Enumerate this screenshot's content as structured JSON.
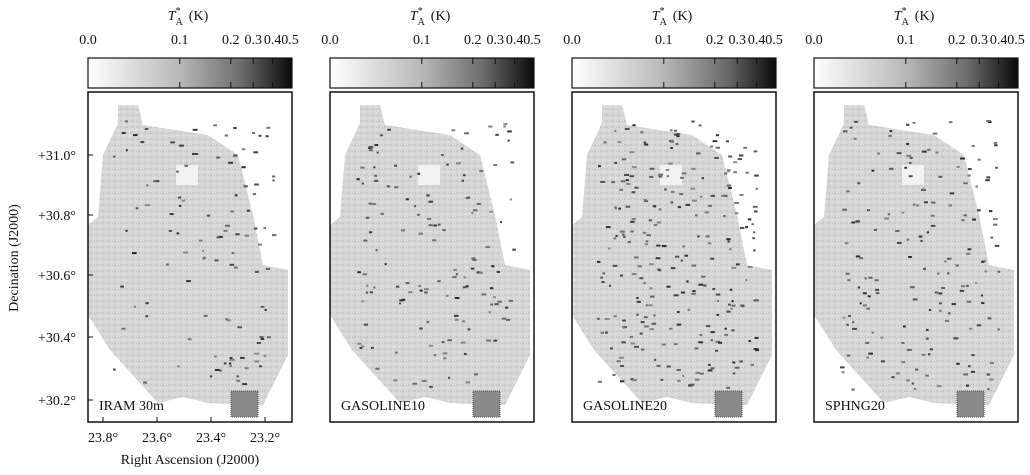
{
  "colorbar": {
    "symbol": "T",
    "superscript": "*",
    "subscript": "A",
    "unit": "(K)",
    "ticks": [
      "0.0",
      "0.1",
      "0.2",
      "0.3",
      "0.4",
      "0.5"
    ]
  },
  "panels": [
    {
      "label": "IRAM 30m"
    },
    {
      "label": "GASOLINE10"
    },
    {
      "label": "GASOLINE20"
    },
    {
      "label": "SPHNG20"
    }
  ],
  "y_axis": {
    "label": "Decination (J2000)",
    "ticks": [
      "+31.0°",
      "+30.8°",
      "+30.6°",
      "+30.4°",
      "+30.2°"
    ]
  },
  "x_axis": {
    "label": "Right Ascension (J2000)",
    "ticks": [
      "23.8°",
      "23.6°",
      "23.4°",
      "23.2°"
    ]
  }
}
